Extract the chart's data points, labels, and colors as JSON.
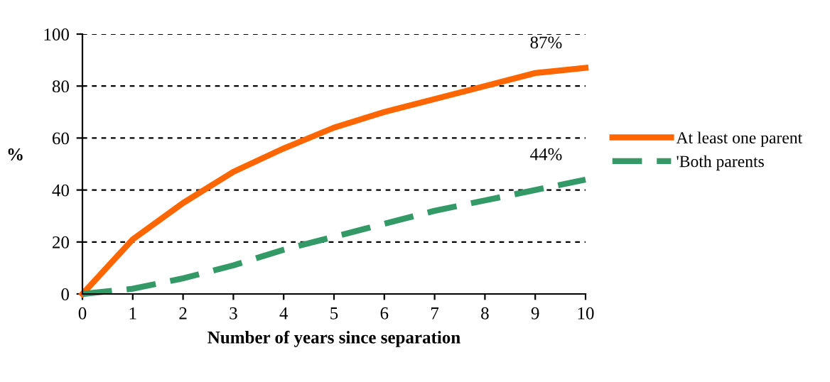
{
  "chart_data": {
    "type": "line",
    "xlabel": "Number of years since separation",
    "ylabel": "%",
    "x": [
      0,
      1,
      2,
      3,
      4,
      5,
      6,
      7,
      8,
      9,
      10
    ],
    "series": [
      {
        "name": "At least one parent",
        "color": "#ff6600",
        "line_style": "solid",
        "values": [
          0,
          21,
          35,
          47,
          56,
          64,
          70,
          75,
          80,
          85,
          87
        ]
      },
      {
        "name": "'Both parents",
        "color": "#339966",
        "line_style": "dashed",
        "values": [
          0,
          2,
          6,
          11,
          17,
          22,
          27,
          32,
          36,
          40,
          44
        ]
      }
    ],
    "annotations": [
      {
        "text": "87%",
        "x": 10,
        "y": 87
      },
      {
        "text": "44%",
        "x": 10,
        "y": 44
      }
    ],
    "xlim": [
      0,
      10
    ],
    "ylim": [
      0,
      100
    ],
    "xticks": [
      0,
      1,
      2,
      3,
      4,
      5,
      6,
      7,
      8,
      9,
      10
    ],
    "yticks": [
      0,
      20,
      40,
      60,
      80,
      100
    ],
    "grid": "y",
    "legend": "right",
    "marker": "none"
  }
}
